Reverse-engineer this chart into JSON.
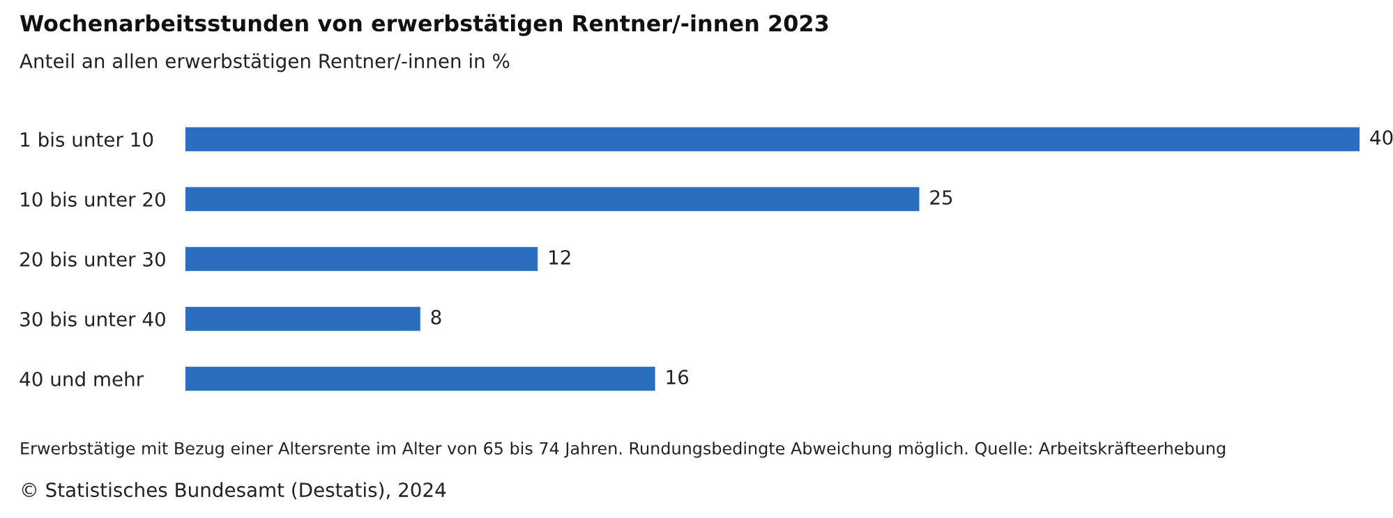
{
  "chart_data": {
    "type": "bar",
    "orientation": "horizontal",
    "title": "Wochenarbeitsstunden von erwerbstätigen Rentner/-innen 2023",
    "subtitle": "Anteil an allen erwerbstätigen Rentner/-innen in %",
    "categories": [
      "1 bis unter 10",
      "10 bis unter 20",
      "20 bis unter 30",
      "30 bis unter 40",
      "40 und mehr"
    ],
    "values": [
      40,
      25,
      12,
      8,
      16
    ],
    "color": "#2a6ebf",
    "data_labels": true,
    "grid": false,
    "legend": false,
    "tick_labels": "y",
    "annotations": [
      "Erwerbstätige mit Bezug einer Altersrente im Alter von 65 bis 74 Jahren. Rundungsbedingte Abweichung möglich. Quelle: Arbeitskräfteerhebung",
      "© Statistisches Bundesamt (Destatis), 2024"
    ]
  }
}
